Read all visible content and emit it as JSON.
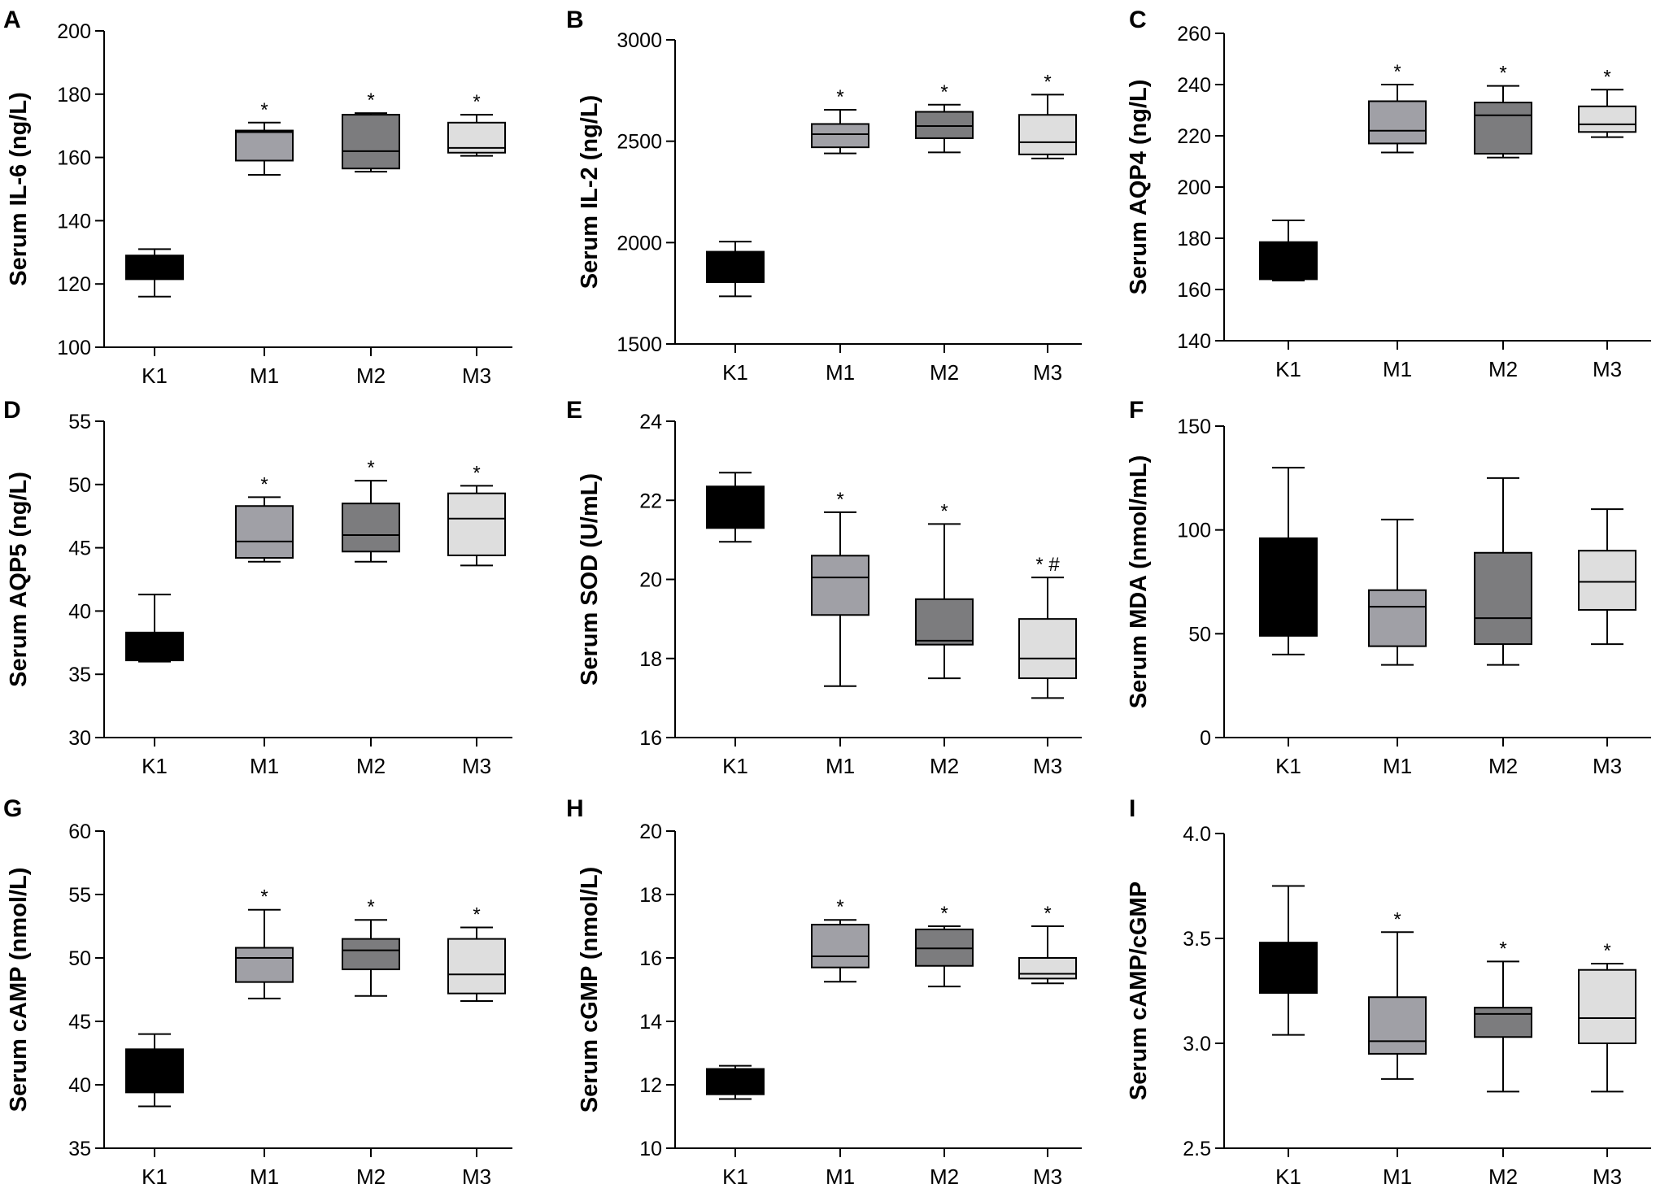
{
  "colors": {
    "K1": "#000000",
    "M1": "#a0a0a6",
    "M2": "#7c7c7e",
    "M3": "#dedede"
  },
  "chart_data": [
    {
      "panel": "A",
      "type": "box",
      "ylabel": "Serum IL-6 (ng/L)",
      "ylim": [
        100,
        200
      ],
      "yticks": [
        100,
        120,
        140,
        160,
        180,
        200
      ],
      "categories": [
        "K1",
        "M1",
        "M2",
        "M3"
      ],
      "boxes": [
        {
          "group": "K1",
          "min": 116,
          "q1": 121.5,
          "median": 127.5,
          "q3": 129,
          "max": 131,
          "annotation": ""
        },
        {
          "group": "M1",
          "min": 154.5,
          "q1": 159,
          "median": 168,
          "q3": 168.5,
          "max": 171,
          "annotation": "*"
        },
        {
          "group": "M2",
          "min": 155.5,
          "q1": 156.5,
          "median": 162,
          "q3": 173.5,
          "max": 174,
          "annotation": "*"
        },
        {
          "group": "M3",
          "min": 160.5,
          "q1": 161.5,
          "median": 163,
          "q3": 171,
          "max": 173.5,
          "annotation": "*"
        }
      ]
    },
    {
      "panel": "B",
      "type": "box",
      "ylabel": "Serum IL-2 (ng/L)",
      "ylim": [
        1500,
        3000
      ],
      "yticks": [
        1500,
        2000,
        2500,
        3000
      ],
      "categories": [
        "K1",
        "M1",
        "M2",
        "M3"
      ],
      "boxes": [
        {
          "group": "K1",
          "min": 1735,
          "q1": 1805,
          "median": 1900,
          "q3": 1955,
          "max": 2005,
          "annotation": ""
        },
        {
          "group": "M1",
          "min": 2440,
          "q1": 2470,
          "median": 2535,
          "q3": 2585,
          "max": 2655,
          "annotation": "*"
        },
        {
          "group": "M2",
          "min": 2445,
          "q1": 2515,
          "median": 2575,
          "q3": 2645,
          "max": 2680,
          "annotation": "*"
        },
        {
          "group": "M3",
          "min": 2415,
          "q1": 2435,
          "median": 2495,
          "q3": 2630,
          "max": 2730,
          "annotation": "*"
        }
      ]
    },
    {
      "panel": "C",
      "type": "box",
      "ylabel": "Serum AQP4 (ng/L)",
      "ylim": [
        140,
        260
      ],
      "yticks": [
        140,
        160,
        180,
        200,
        220,
        240,
        260
      ],
      "categories": [
        "K1",
        "M1",
        "M2",
        "M3"
      ],
      "boxes": [
        {
          "group": "K1",
          "min": 163.5,
          "q1": 164,
          "median": 170,
          "q3": 178.5,
          "max": 187,
          "annotation": ""
        },
        {
          "group": "M1",
          "min": 213.5,
          "q1": 217,
          "median": 222,
          "q3": 233.5,
          "max": 240,
          "annotation": "*"
        },
        {
          "group": "M2",
          "min": 211.5,
          "q1": 213,
          "median": 228,
          "q3": 233,
          "max": 239.5,
          "annotation": "*"
        },
        {
          "group": "M3",
          "min": 219.5,
          "q1": 221.5,
          "median": 224.5,
          "q3": 231.5,
          "max": 238,
          "annotation": "*"
        }
      ]
    },
    {
      "panel": "D",
      "type": "box",
      "ylabel": "Serum AQP5 (ng/L)",
      "ylim": [
        30,
        55
      ],
      "yticks": [
        30,
        35,
        40,
        45,
        50,
        55
      ],
      "categories": [
        "K1",
        "M1",
        "M2",
        "M3"
      ],
      "boxes": [
        {
          "group": "K1",
          "min": 36,
          "q1": 36.1,
          "median": 37,
          "q3": 38.3,
          "max": 41.3,
          "annotation": ""
        },
        {
          "group": "M1",
          "min": 43.9,
          "q1": 44.2,
          "median": 45.5,
          "q3": 48.3,
          "max": 49,
          "annotation": "*"
        },
        {
          "group": "M2",
          "min": 43.9,
          "q1": 44.7,
          "median": 46,
          "q3": 48.5,
          "max": 50.3,
          "annotation": "*"
        },
        {
          "group": "M3",
          "min": 43.6,
          "q1": 44.4,
          "median": 47.3,
          "q3": 49.3,
          "max": 49.9,
          "annotation": "*"
        }
      ]
    },
    {
      "panel": "E",
      "type": "box",
      "ylabel": "Serum SOD (U/mL)",
      "ylim": [
        16,
        24
      ],
      "yticks": [
        16,
        18,
        20,
        22,
        24
      ],
      "categories": [
        "K1",
        "M1",
        "M2",
        "M3"
      ],
      "boxes": [
        {
          "group": "K1",
          "min": 20.95,
          "q1": 21.3,
          "median": 21.7,
          "q3": 22.35,
          "max": 22.7,
          "annotation": ""
        },
        {
          "group": "M1",
          "min": 17.3,
          "q1": 19.1,
          "median": 20.05,
          "q3": 20.6,
          "max": 21.7,
          "annotation": "*"
        },
        {
          "group": "M2",
          "min": 17.5,
          "q1": 18.35,
          "median": 18.45,
          "q3": 19.5,
          "max": 21.4,
          "annotation": "*"
        },
        {
          "group": "M3",
          "min": 17,
          "q1": 17.5,
          "median": 18,
          "q3": 19,
          "max": 20.05,
          "annotation": "* #"
        }
      ]
    },
    {
      "panel": "F",
      "type": "box",
      "ylabel": "Serum MDA (nmol/mL)",
      "ylim": [
        0,
        150
      ],
      "yticks": [
        0,
        50,
        100,
        150
      ],
      "categories": [
        "K1",
        "M1",
        "M2",
        "M3"
      ],
      "boxes": [
        {
          "group": "K1",
          "min": 40,
          "q1": 49,
          "median": 72,
          "q3": 96,
          "max": 130,
          "annotation": ""
        },
        {
          "group": "M1",
          "min": 35,
          "q1": 44,
          "median": 63,
          "q3": 71,
          "max": 105,
          "annotation": ""
        },
        {
          "group": "M2",
          "min": 35,
          "q1": 45,
          "median": 57.5,
          "q3": 89,
          "max": 125,
          "annotation": ""
        },
        {
          "group": "M3",
          "min": 45,
          "q1": 61.5,
          "median": 75,
          "q3": 90,
          "max": 110,
          "annotation": ""
        }
      ]
    },
    {
      "panel": "G",
      "type": "box",
      "ylabel": "Serum cAMP (nmol/L)",
      "ylim": [
        35,
        60
      ],
      "yticks": [
        35,
        40,
        45,
        50,
        55,
        60
      ],
      "categories": [
        "K1",
        "M1",
        "M2",
        "M3"
      ],
      "boxes": [
        {
          "group": "K1",
          "min": 38.3,
          "q1": 39.4,
          "median": 41,
          "q3": 42.8,
          "max": 44,
          "annotation": ""
        },
        {
          "group": "M1",
          "min": 46.8,
          "q1": 48.1,
          "median": 50,
          "q3": 50.8,
          "max": 53.8,
          "annotation": "*"
        },
        {
          "group": "M2",
          "min": 47,
          "q1": 49.1,
          "median": 50.6,
          "q3": 51.5,
          "max": 53,
          "annotation": "*"
        },
        {
          "group": "M3",
          "min": 46.6,
          "q1": 47.2,
          "median": 48.7,
          "q3": 51.5,
          "max": 52.4,
          "annotation": "*"
        }
      ]
    },
    {
      "panel": "H",
      "type": "box",
      "ylabel": "Serum cGMP (nmol/L)",
      "ylim": [
        10,
        20
      ],
      "yticks": [
        10,
        12,
        14,
        16,
        18,
        20
      ],
      "categories": [
        "K1",
        "M1",
        "M2",
        "M3"
      ],
      "boxes": [
        {
          "group": "K1",
          "min": 11.55,
          "q1": 11.7,
          "median": 12.3,
          "q3": 12.5,
          "max": 12.6,
          "annotation": ""
        },
        {
          "group": "M1",
          "min": 15.25,
          "q1": 15.7,
          "median": 16.05,
          "q3": 17.05,
          "max": 17.2,
          "annotation": "*"
        },
        {
          "group": "M2",
          "min": 15.1,
          "q1": 15.75,
          "median": 16.3,
          "q3": 16.9,
          "max": 17,
          "annotation": "*"
        },
        {
          "group": "M3",
          "min": 15.2,
          "q1": 15.35,
          "median": 15.5,
          "q3": 16,
          "max": 17,
          "annotation": "*"
        }
      ]
    },
    {
      "panel": "I",
      "type": "box",
      "ylabel": "Serum cAMP/cGMP",
      "ylim": [
        2.5,
        4.0
      ],
      "yticks": [
        "2.5",
        "3.0",
        "3.5",
        "4.0"
      ],
      "categories": [
        "K1",
        "M1",
        "M2",
        "M3"
      ],
      "boxes": [
        {
          "group": "K1",
          "min": 3.04,
          "q1": 3.24,
          "median": 3.36,
          "q3": 3.48,
          "max": 3.75,
          "annotation": ""
        },
        {
          "group": "M1",
          "min": 2.83,
          "q1": 2.95,
          "median": 3.01,
          "q3": 3.22,
          "max": 3.53,
          "annotation": "*"
        },
        {
          "group": "M2",
          "min": 2.77,
          "q1": 3.03,
          "median": 3.14,
          "q3": 3.17,
          "max": 3.39,
          "annotation": "*"
        },
        {
          "group": "M3",
          "min": 2.77,
          "q1": 3.0,
          "median": 3.12,
          "q3": 3.35,
          "max": 3.38,
          "annotation": "*"
        }
      ]
    }
  ]
}
